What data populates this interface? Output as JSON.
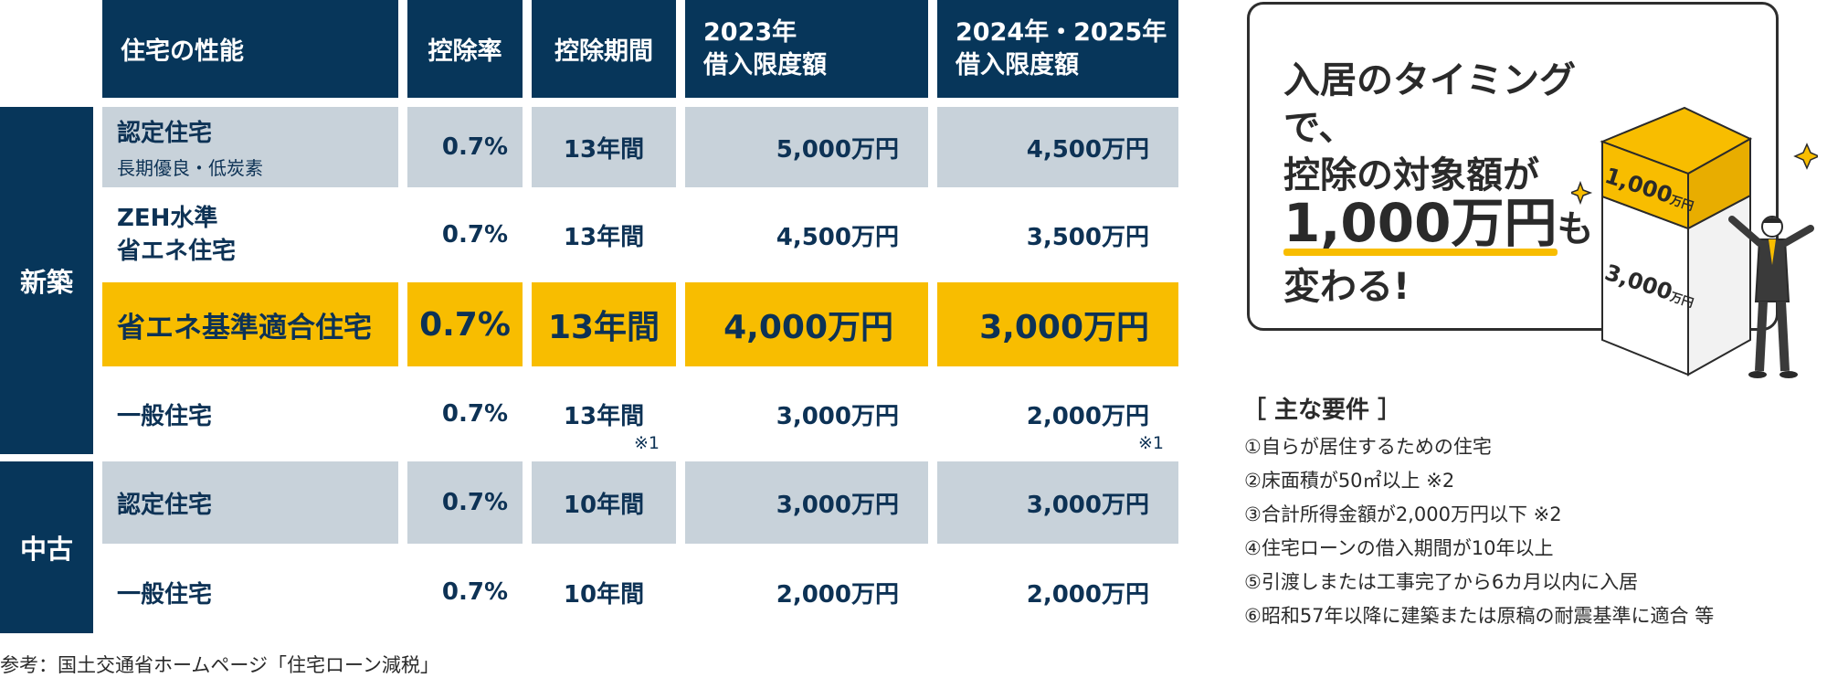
{
  "header": {
    "performance": "住宅の性能",
    "rate": "控除率",
    "period": "控除期間",
    "limit2023_line1": "2023年",
    "limit2023_line2": "借入限度額",
    "limit2024_line1": "2024年・2025年",
    "limit2024_line2": "借入限度額"
  },
  "sections": {
    "new": "新築",
    "used": "中古"
  },
  "rows": [
    {
      "name": "認定住宅",
      "sub": "長期優良・低炭素",
      "rate": "0.7%",
      "period": "13年間",
      "limit2023": "5,000万円",
      "limit2024": "4,500万円"
    },
    {
      "name_line1": "ZEH水準",
      "name_line2": "省エネ住宅",
      "rate": "0.7%",
      "period": "13年間",
      "limit2023": "4,500万円",
      "limit2024": "3,500万円"
    },
    {
      "name": "省エネ基準適合住宅",
      "rate": "0.7%",
      "period": "13年間",
      "limit2023": "4,000万円",
      "limit2024": "3,000万円"
    },
    {
      "name": "一般住宅",
      "rate": "0.7%",
      "period": "13年間",
      "limit2023": "3,000万円",
      "limit2024": "2,000万円"
    },
    {
      "name": "認定住宅",
      "rate": "0.7%",
      "period": "10年間",
      "limit2023": "3,000万円",
      "limit2024": "3,000万円"
    },
    {
      "name": "一般住宅",
      "rate": "0.7%",
      "period": "10年間",
      "limit2023": "2,000万円",
      "limit2024": "2,000万円"
    }
  ],
  "footnote_mark": "※1",
  "callout": {
    "line1": "入居のタイミングで、",
    "line2": "控除の対象額が",
    "line3_amount": "1,000万円",
    "line3_suffix": "も",
    "line4": "変わる!"
  },
  "illustration": {
    "top_value": "1,000",
    "top_unit": "万円",
    "bottom_value": "3,000",
    "bottom_unit": "万円"
  },
  "requirements": {
    "title": "［ 主な要件 ］",
    "items": [
      "①自らが居住するための住宅",
      "②床面積が50㎡以上 ※2",
      "③合計所得金額が2,000万円以下 ※2",
      "④住宅ローンの借入期間が10年以上",
      "⑤引渡しまたは工事完了から6カ月以内に入居",
      "⑥昭和57年以降に建築または原稿の耐震基準に適合 等"
    ]
  },
  "source": "参考：国土交通省ホームページ「住宅ローン減税」",
  "colors": {
    "navy": "#07365a",
    "gray": "#c8d2da",
    "yellow": "#f8bd00"
  }
}
